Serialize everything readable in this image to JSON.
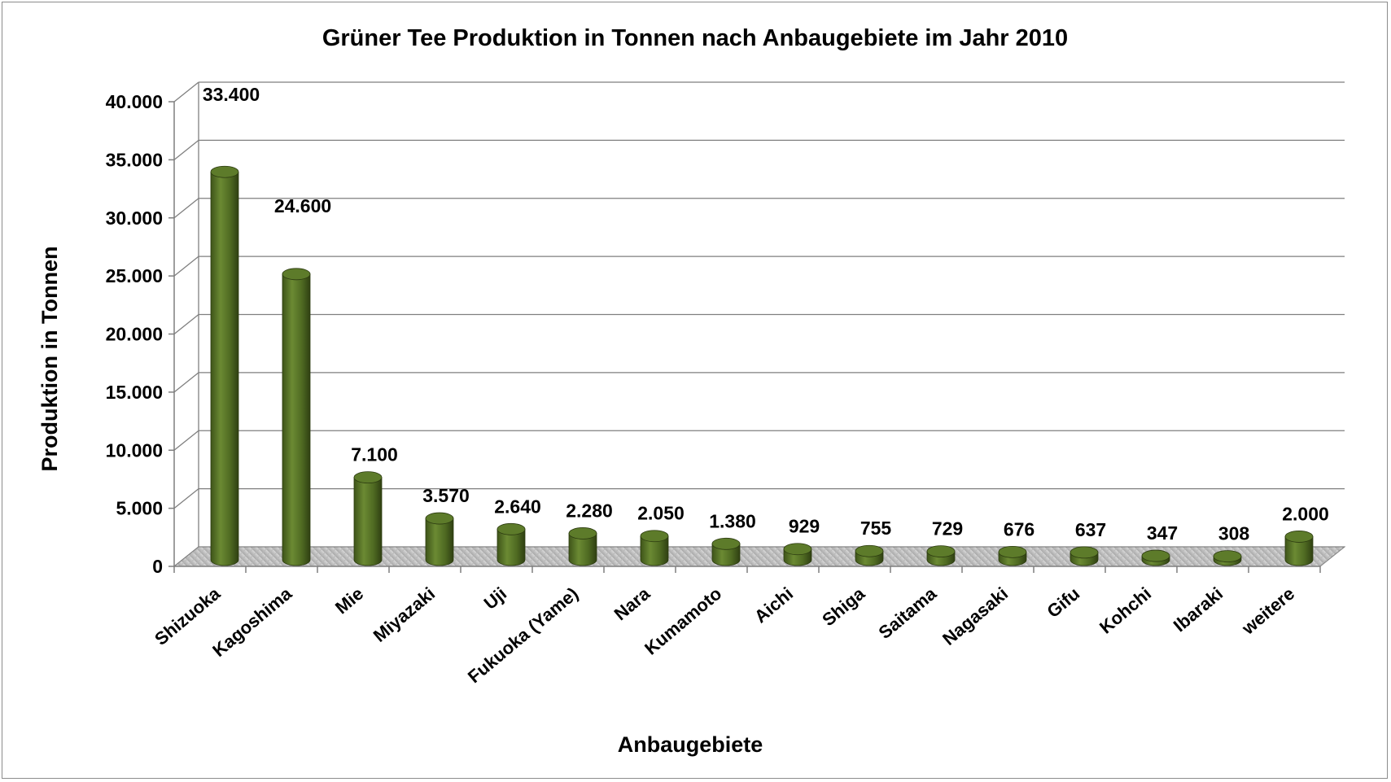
{
  "chart_data": {
    "type": "bar",
    "title": "Grüner Tee Produktion in Tonnen nach Anbaugebiete im Jahr 2010",
    "xlabel": "Anbaugebiete",
    "ylabel": "Produktion in Tonnen",
    "ylim": [
      0,
      40000
    ],
    "yticks": [
      "0",
      "5.000",
      "10.000",
      "15.000",
      "20.000",
      "25.000",
      "30.000",
      "35.000",
      "40.000"
    ],
    "grid": true,
    "legend": "none",
    "bar_color": "#4f6a22",
    "categories": [
      "Shizuoka",
      "Kagoshima",
      "Mie",
      "Miyazaki",
      "Uji",
      "Fukuoka (Yame)",
      "Nara",
      "Kumamoto",
      "Aichi",
      "Shiga",
      "Saitama",
      "Nagasaki",
      "Gifu",
      "Kohchi",
      "Ibaraki",
      "weitere"
    ],
    "values": [
      33400,
      24600,
      7100,
      3570,
      2640,
      2280,
      2050,
      1380,
      929,
      755,
      729,
      676,
      637,
      347,
      308,
      2000
    ],
    "value_labels": [
      "33.400",
      "24.600",
      "7.100",
      "3.570",
      "2.640",
      "2.280",
      "2.050",
      "1.380",
      "929",
      "755",
      "729",
      "676",
      "637",
      "347",
      "308",
      "2.000"
    ]
  }
}
